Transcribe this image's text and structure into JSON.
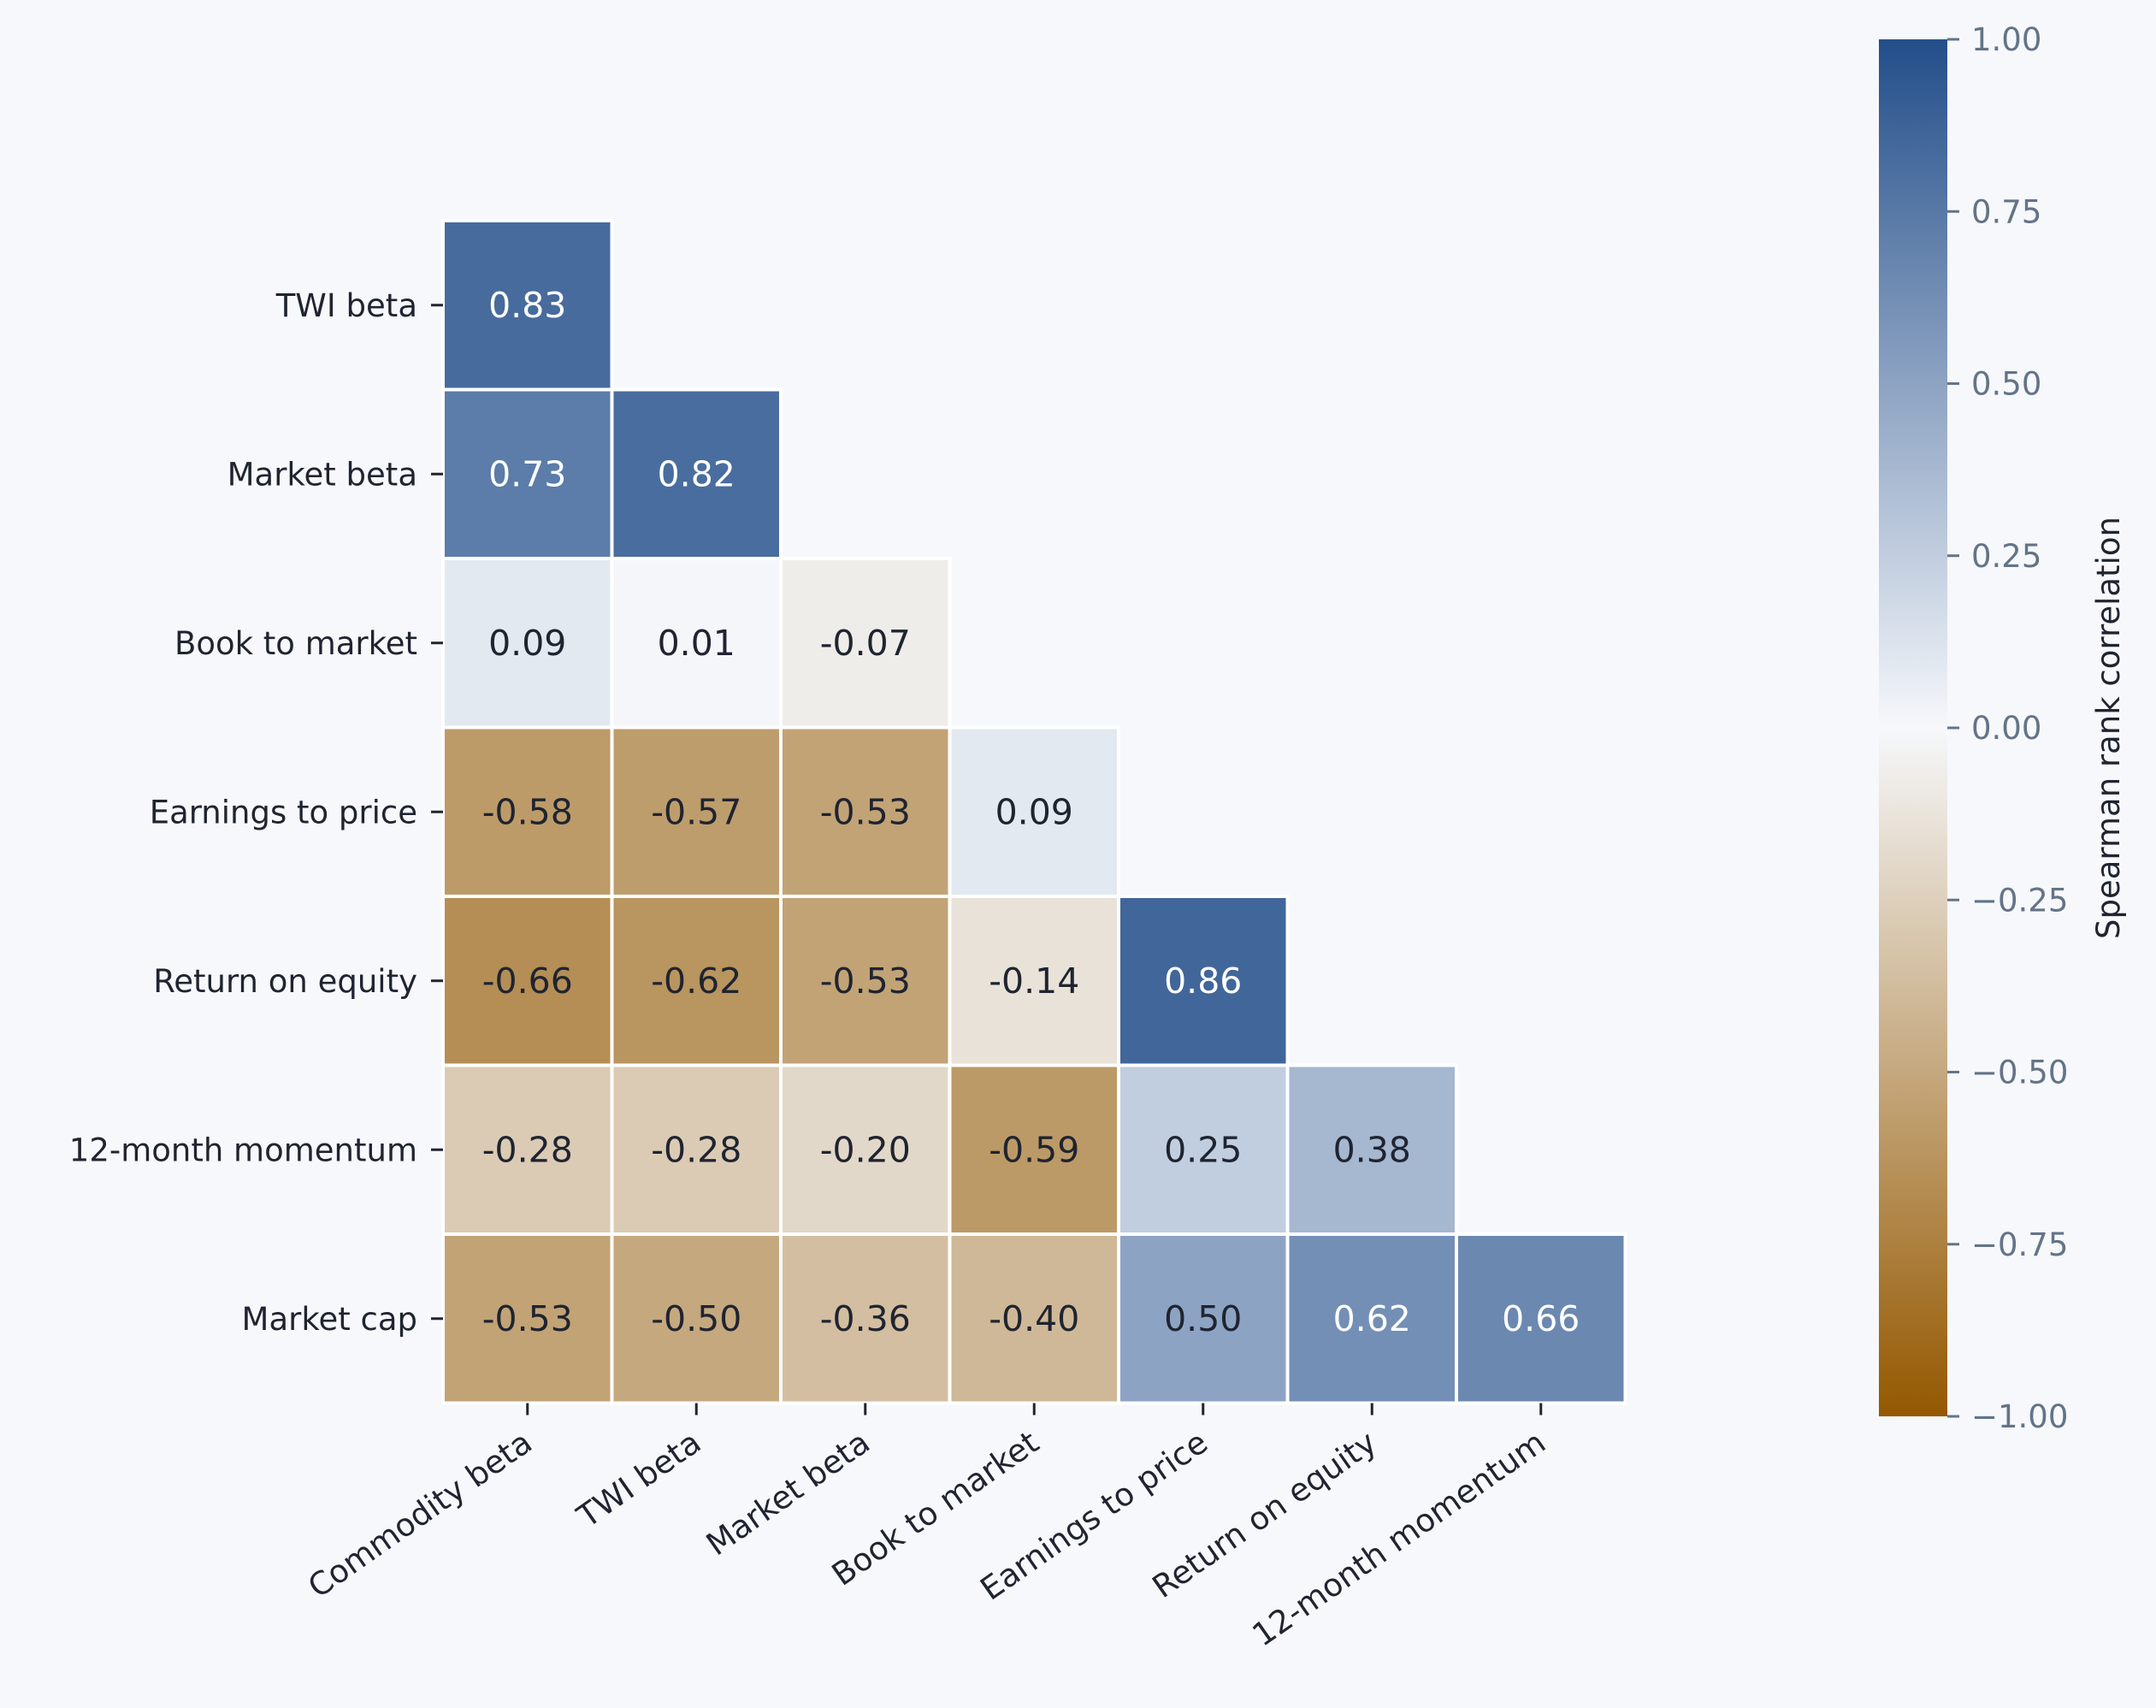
{
  "chart_data": {
    "type": "heatmap",
    "mask": "upper-triangle",
    "x_categories": [
      "Commodity beta",
      "TWI beta",
      "Market beta",
      "Book to market",
      "Earnings to price",
      "Return on equity",
      "12-month momentum"
    ],
    "y_categories": [
      "TWI beta",
      "Market beta",
      "Book to market",
      "Earnings to price",
      "Return on equity",
      "12-month momentum",
      "Market cap"
    ],
    "values": [
      [
        0.83,
        null,
        null,
        null,
        null,
        null,
        null
      ],
      [
        0.73,
        0.82,
        null,
        null,
        null,
        null,
        null
      ],
      [
        0.09,
        0.01,
        -0.07,
        null,
        null,
        null,
        null
      ],
      [
        -0.58,
        -0.57,
        -0.53,
        0.09,
        null,
        null,
        null
      ],
      [
        -0.66,
        -0.62,
        -0.53,
        -0.14,
        0.86,
        null,
        null
      ],
      [
        -0.28,
        -0.28,
        -0.2,
        -0.59,
        0.25,
        0.38,
        null
      ],
      [
        -0.53,
        -0.5,
        -0.36,
        -0.4,
        0.5,
        0.62,
        0.66
      ]
    ],
    "value_labels": [
      [
        "0.83",
        "",
        "",
        "",
        "",
        "",
        ""
      ],
      [
        "0.73",
        "0.82",
        "",
        "",
        "",
        "",
        ""
      ],
      [
        "0.09",
        "0.01",
        "-0.07",
        "",
        "",
        "",
        ""
      ],
      [
        "-0.58",
        "-0.57",
        "-0.53",
        "0.09",
        "",
        "",
        ""
      ],
      [
        "-0.66",
        "-0.62",
        "-0.53",
        "-0.14",
        "0.86",
        "",
        ""
      ],
      [
        "-0.28",
        "-0.28",
        "-0.20",
        "-0.59",
        "0.25",
        "0.38",
        ""
      ],
      [
        "-0.53",
        "-0.50",
        "-0.36",
        "-0.40",
        "0.50",
        "0.62",
        "0.66"
      ]
    ],
    "colorbar": {
      "label": "Spearman rank correlation",
      "range": [
        -1.0,
        1.0
      ],
      "ticks": [
        1.0,
        0.75,
        0.5,
        0.25,
        0.0,
        -0.25,
        -0.5,
        -0.75,
        -1.0
      ],
      "tick_labels": [
        "1.00",
        "0.75",
        "0.50",
        "0.25",
        "0.00",
        "−0.25",
        "−0.50",
        "−0.75",
        "−1.00"
      ],
      "colors": {
        "negative_end": "#945800",
        "mid": "#f6f8fb",
        "positive_end": "#234e8a"
      }
    },
    "x_tick_rotation_deg": 35,
    "grid": false
  }
}
